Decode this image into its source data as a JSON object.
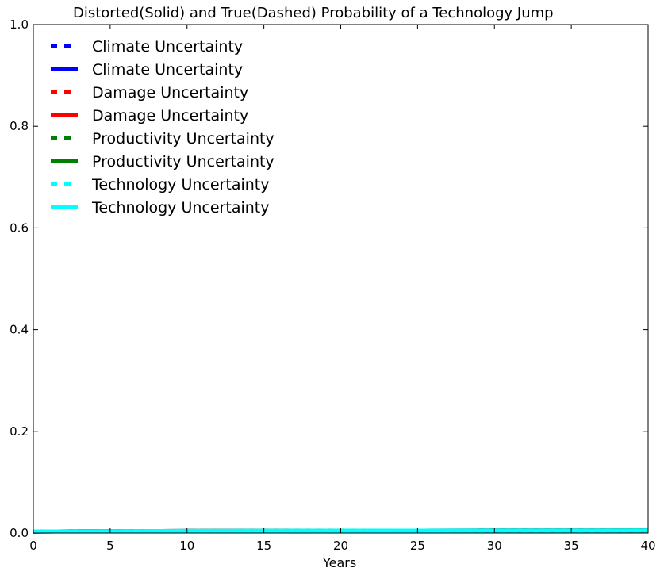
{
  "chart_data": {
    "type": "line",
    "title": "Distorted(Solid) and True(Dashed) Probability of a Technology Jump",
    "xlabel": "Years",
    "ylabel": "",
    "xlim": [
      0,
      40
    ],
    "ylim": [
      0,
      1.0
    ],
    "xticks": [
      "0",
      "5",
      "10",
      "15",
      "20",
      "25",
      "30",
      "35",
      "40"
    ],
    "yticks": [
      "0.0",
      "0.2",
      "0.4",
      "0.6",
      "0.8",
      "1.0"
    ],
    "grid": false,
    "legend_position": "top-left",
    "x": [
      0,
      5,
      10,
      15,
      20,
      25,
      30,
      35,
      40
    ],
    "series": [
      {
        "name": "Climate Uncertainty",
        "style": "dashed",
        "color": "#0000ff",
        "values": [
          0.003,
          0.0035,
          0.004,
          0.0043,
          0.0045,
          0.0047,
          0.0048,
          0.0049,
          0.005
        ]
      },
      {
        "name": "Climate Uncertainty",
        "style": "solid",
        "color": "#0000ff",
        "values": [
          0.003,
          0.0035,
          0.004,
          0.0043,
          0.0045,
          0.0047,
          0.0048,
          0.0049,
          0.005
        ]
      },
      {
        "name": "Damage Uncertainty",
        "style": "dashed",
        "color": "#ff0000",
        "values": [
          0.003,
          0.0035,
          0.004,
          0.0043,
          0.0045,
          0.0047,
          0.0048,
          0.0049,
          0.005
        ]
      },
      {
        "name": "Damage Uncertainty",
        "style": "solid",
        "color": "#ff0000",
        "values": [
          0.003,
          0.0035,
          0.004,
          0.0043,
          0.0045,
          0.0047,
          0.0048,
          0.0049,
          0.005
        ]
      },
      {
        "name": "Productivity Uncertainty",
        "style": "dashed",
        "color": "#008000",
        "values": [
          0.003,
          0.0035,
          0.004,
          0.0043,
          0.0045,
          0.0047,
          0.0048,
          0.0049,
          0.005
        ]
      },
      {
        "name": "Productivity Uncertainty",
        "style": "solid",
        "color": "#008000",
        "values": [
          0.003,
          0.0035,
          0.004,
          0.0043,
          0.0045,
          0.0047,
          0.0048,
          0.0049,
          0.005
        ]
      },
      {
        "name": "Technology Uncertainty",
        "style": "dashed",
        "color": "#00ffff",
        "values": [
          0.003,
          0.0035,
          0.004,
          0.0043,
          0.0045,
          0.0047,
          0.0048,
          0.0049,
          0.005
        ]
      },
      {
        "name": "Technology Uncertainty",
        "style": "solid",
        "color": "#00ffff",
        "values": [
          0.003,
          0.0035,
          0.004,
          0.0043,
          0.0045,
          0.0047,
          0.0048,
          0.0049,
          0.005
        ]
      }
    ]
  }
}
